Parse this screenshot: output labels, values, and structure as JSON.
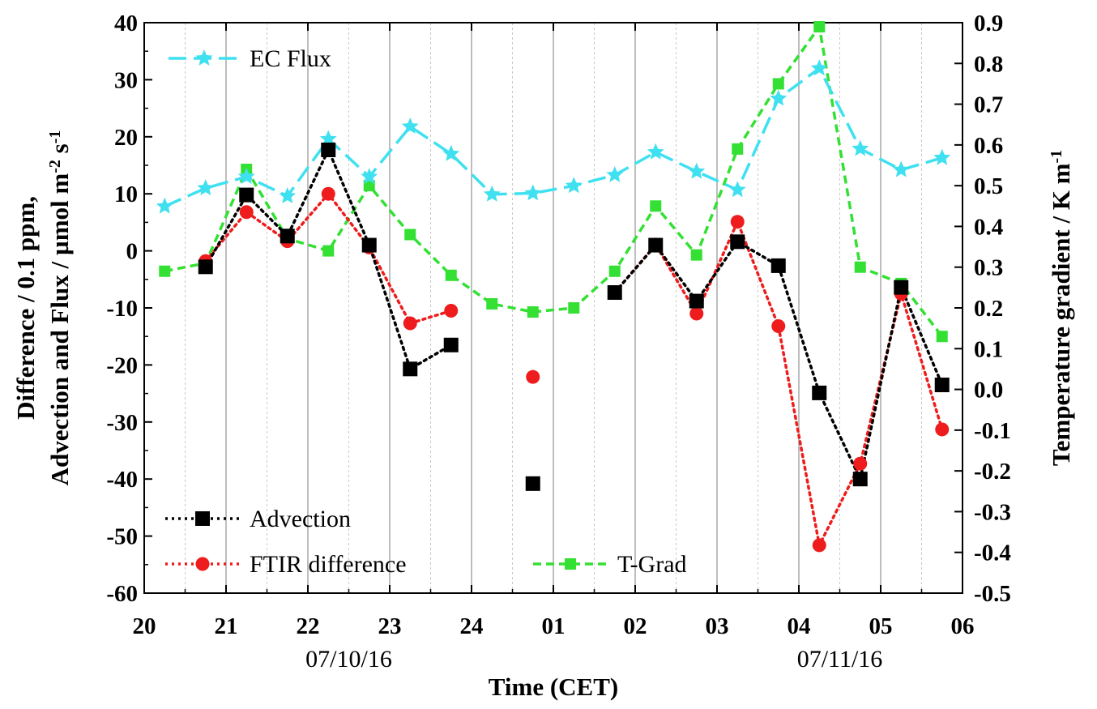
{
  "chart_data": {
    "type": "line",
    "x_axis": {
      "label": "Time (CET)",
      "ticks": [
        "20",
        "21",
        "22",
        "23",
        "24",
        "01",
        "02",
        "03",
        "04",
        "05",
        "06"
      ],
      "range": [
        20,
        30
      ],
      "date_labels": [
        {
          "text": "07/10/16",
          "x": 22.5
        },
        {
          "text": "07/11/16",
          "x": 28.5
        }
      ]
    },
    "y_left": {
      "label_line1": "Difference / 0.1 ppm,",
      "label_line2_prefix": "Advection and Flux / µmol m",
      "label_sup1": "-2",
      "label_mid": " s",
      "label_sup2": "-1",
      "range": [
        -60,
        40
      ],
      "ticks": [
        "-60",
        "-50",
        "-40",
        "-30",
        "-20",
        "-10",
        "0",
        "10",
        "20",
        "30",
        "40"
      ]
    },
    "y_right": {
      "label_prefix": "Temperature gradient / K m",
      "label_sup": "-1",
      "range": [
        -0.5,
        0.9
      ],
      "ticks": [
        "-0.5",
        "-0.4",
        "-0.3",
        "-0.2",
        "-0.1",
        "0.0",
        "0.1",
        "0.2",
        "0.3",
        "0.4",
        "0.5",
        "0.6",
        "0.7",
        "0.8",
        "0.9"
      ]
    },
    "grid": "vertical lines at hours (solid) and half hours (dotted)",
    "series": [
      {
        "name": "EC Flux",
        "axis": "left",
        "color": "#3fe0f0",
        "marker": "star",
        "line": "dash",
        "points": [
          [
            20.25,
            7.8
          ],
          [
            20.75,
            11.0
          ],
          [
            21.25,
            13.0
          ],
          [
            21.75,
            9.6
          ],
          [
            22.25,
            19.6
          ],
          [
            22.75,
            13.0
          ],
          [
            23.25,
            21.8
          ],
          [
            23.75,
            17.0
          ],
          [
            24.25,
            9.9
          ],
          [
            24.75,
            10.1
          ],
          [
            25.25,
            11.4
          ],
          [
            25.75,
            13.3
          ],
          [
            26.25,
            17.3
          ],
          [
            26.75,
            13.9
          ],
          [
            27.25,
            10.7
          ],
          [
            27.75,
            26.7
          ],
          [
            28.25,
            32.0
          ],
          [
            28.75,
            17.9
          ],
          [
            29.25,
            14.2
          ],
          [
            29.75,
            16.3
          ]
        ]
      },
      {
        "name": "Advection",
        "axis": "left",
        "color": "#000000",
        "marker": "square",
        "line": "dot",
        "points": [
          [
            20.75,
            -2.8
          ],
          [
            21.25,
            9.8
          ],
          [
            21.75,
            2.6
          ],
          [
            22.25,
            17.7
          ],
          [
            22.75,
            1.0
          ],
          [
            23.25,
            -20.7
          ],
          [
            23.75,
            -16.5
          ],
          [
            24.75,
            -40.8
          ],
          [
            25.75,
            -7.3
          ],
          [
            26.25,
            1.0
          ],
          [
            26.75,
            -8.8
          ],
          [
            27.25,
            1.6
          ],
          [
            27.75,
            -2.6
          ],
          [
            28.25,
            -24.9
          ],
          [
            28.75,
            -40.0
          ],
          [
            29.25,
            -6.4
          ],
          [
            29.75,
            -23.5
          ]
        ]
      },
      {
        "name": "FTIR difference",
        "axis": "left",
        "color": "#ee1c1c",
        "marker": "circle",
        "line": "dot",
        "points": [
          [
            20.75,
            -1.8
          ],
          [
            21.25,
            6.8
          ],
          [
            21.75,
            1.7
          ],
          [
            22.25,
            10.0
          ],
          [
            22.75,
            0.6
          ],
          [
            23.25,
            -12.7
          ],
          [
            23.75,
            -10.5
          ],
          [
            24.75,
            -22.1
          ],
          [
            25.75,
            -7.3
          ],
          [
            26.25,
            1.1
          ],
          [
            26.75,
            -11.0
          ],
          [
            27.25,
            5.1
          ],
          [
            27.75,
            -13.2
          ],
          [
            28.25,
            -51.6
          ],
          [
            28.75,
            -37.3
          ],
          [
            29.25,
            -7.5
          ],
          [
            29.75,
            -31.3
          ]
        ]
      },
      {
        "name": "T-Grad",
        "axis": "right",
        "color": "#33e033",
        "marker": "square",
        "line": "dash",
        "points": [
          [
            20.25,
            0.29
          ],
          [
            20.75,
            0.31
          ],
          [
            21.25,
            0.54
          ],
          [
            21.75,
            0.37
          ],
          [
            22.25,
            0.34
          ],
          [
            22.75,
            0.5
          ],
          [
            23.25,
            0.38
          ],
          [
            23.75,
            0.28
          ],
          [
            24.25,
            0.21
          ],
          [
            24.75,
            0.19
          ],
          [
            25.25,
            0.2
          ],
          [
            25.75,
            0.29
          ],
          [
            26.25,
            0.45
          ],
          [
            26.75,
            0.33
          ],
          [
            27.25,
            0.59
          ],
          [
            27.75,
            0.75
          ],
          [
            28.25,
            0.89
          ],
          [
            28.75,
            0.3
          ],
          [
            29.25,
            0.26
          ],
          [
            29.75,
            0.13
          ]
        ]
      }
    ],
    "legends": {
      "top_left": [
        "EC Flux"
      ],
      "bottom_left": [
        "Advection",
        "FTIR difference"
      ],
      "bottom_right": [
        "T-Grad"
      ]
    }
  }
}
